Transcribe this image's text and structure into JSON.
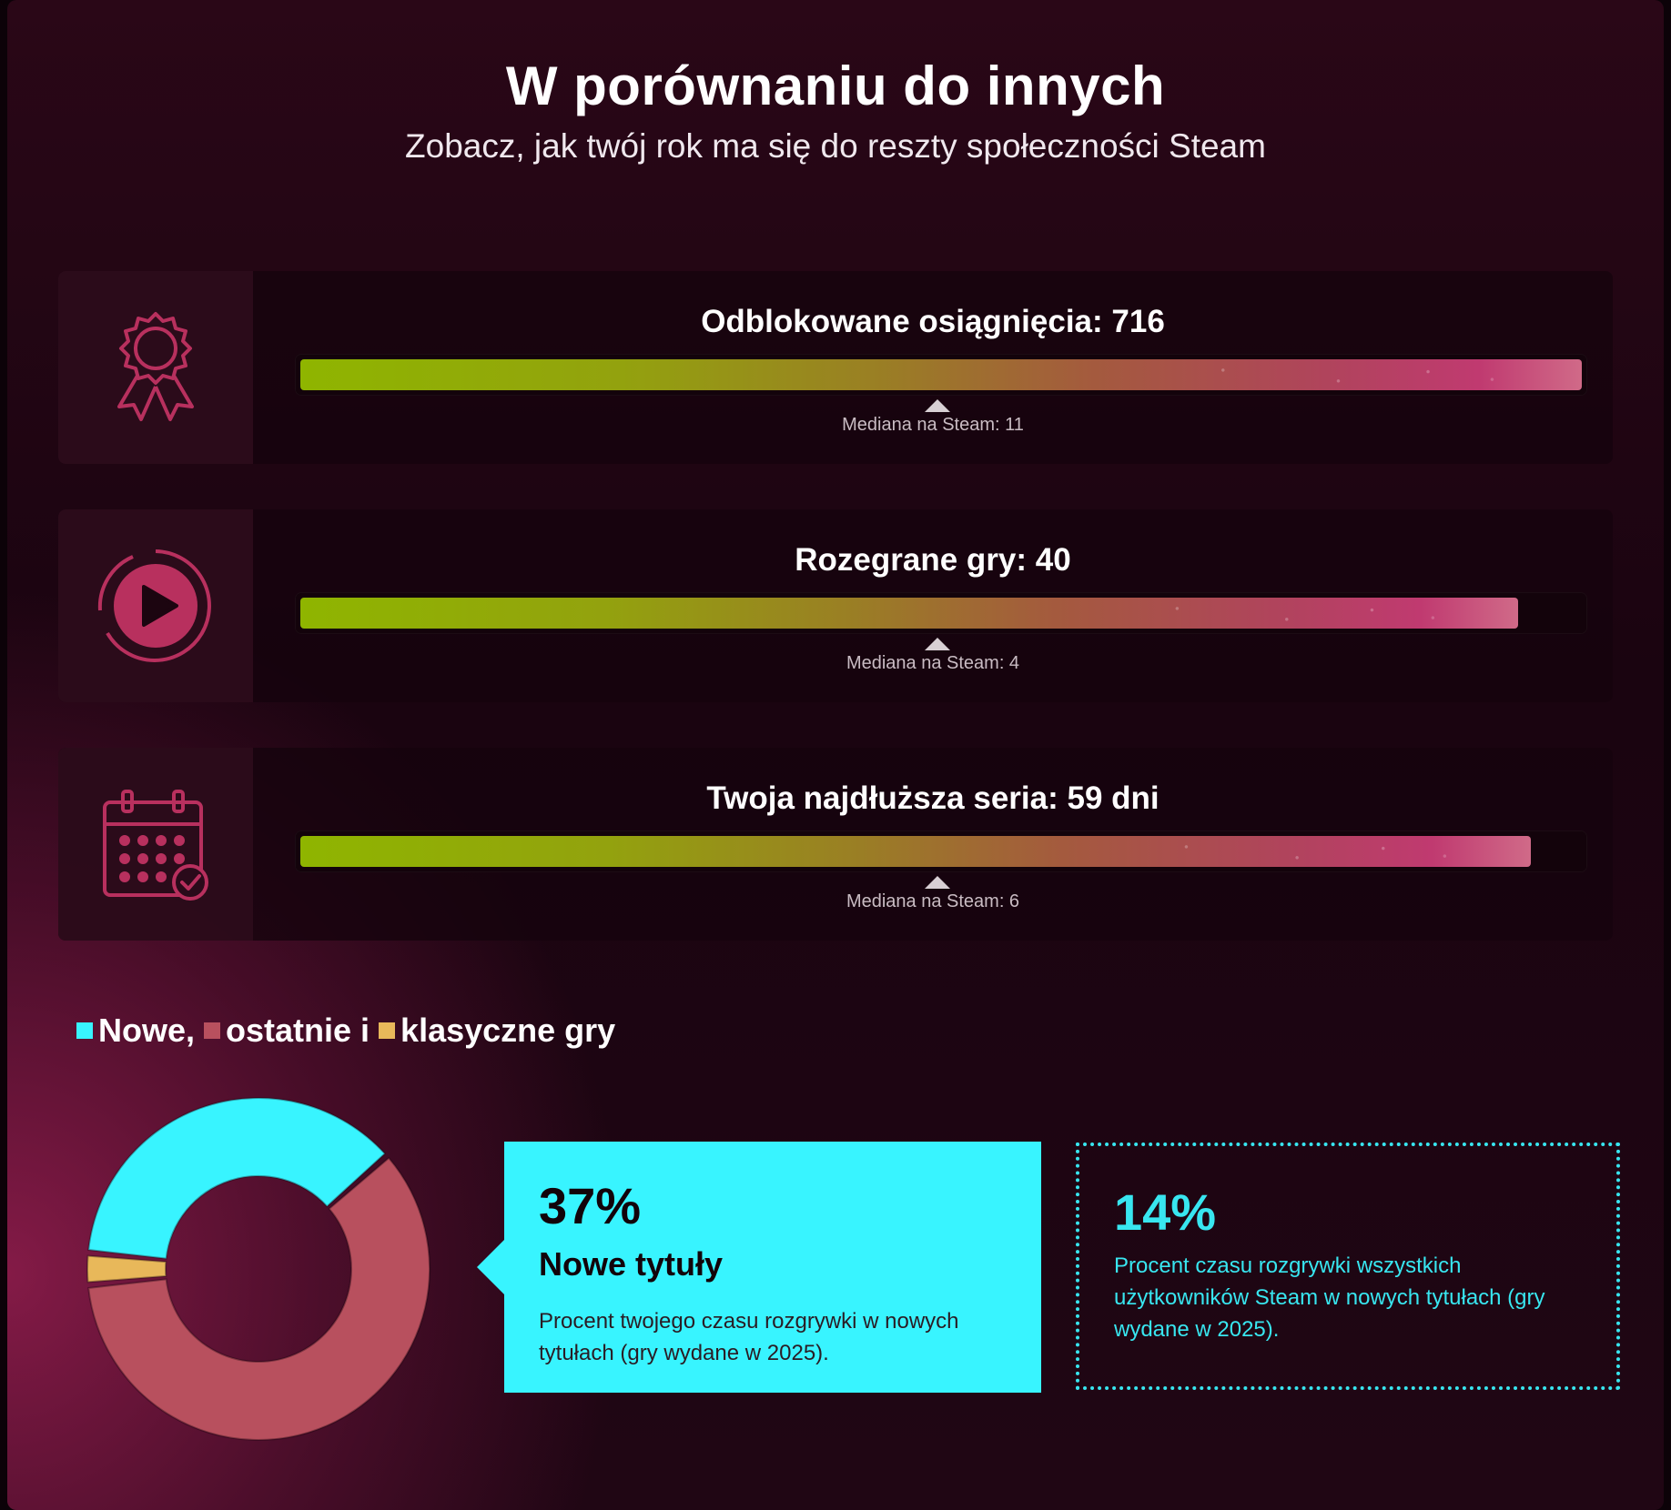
{
  "header": {
    "title": "W porównaniu do innych",
    "subtitle": "Zobacz, jak twój rok ma się do reszty społeczności Steam"
  },
  "stats": [
    {
      "icon": "award-ribbon-icon",
      "label": "Odblokowane osiągnięcia: 716",
      "median": "Mediana na Steam: 11",
      "fill_fraction": 1.0
    },
    {
      "icon": "play-circle-icon",
      "label": "Rozegrane gry: 40",
      "median": "Mediana na Steam: 4",
      "fill_fraction": 0.95
    },
    {
      "icon": "calendar-check-icon",
      "label": "Twoja najdłuższa seria: 59 dni",
      "median": "Mediana na Steam: 6",
      "fill_fraction": 0.96
    }
  ],
  "legend": {
    "new": "Nowe,",
    "recent": "ostatnie i",
    "classic": "klasyczne gry"
  },
  "colors": {
    "new": "#38f4ff",
    "recent": "#b8505e",
    "classic": "#e8b85a",
    "accent": "#c03a70"
  },
  "chart_data": {
    "type": "pie",
    "categories": [
      "Nowe",
      "ostatnie",
      "klasyczne gry"
    ],
    "values": [
      37,
      60,
      3
    ]
  },
  "callout": {
    "percent": "37%",
    "heading": "Nowe tytuły",
    "description": "Procent twojego czasu rozgrywki w nowych tytułach (gry wydane w 2025)."
  },
  "community": {
    "percent": "14%",
    "description": "Procent czasu rozgrywki wszystkich użytkowników Steam w nowych tytułach (gry wydane w 2025)."
  }
}
